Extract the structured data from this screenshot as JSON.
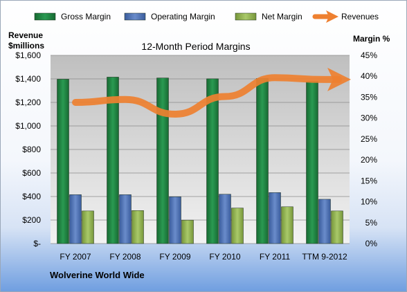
{
  "chart_data": {
    "type": "bar",
    "title": "12-Month Period Margins",
    "company": "Wolverine World Wide",
    "y_left_label_line1": "Revenue",
    "y_left_label_line2": "$millions",
    "y_right_label": "Margin %",
    "categories": [
      "FY 2007",
      "FY 2008",
      "FY 2009",
      "FY 2010",
      "FY 2011",
      "TTM 9-2012"
    ],
    "left_axis": {
      "min": 0,
      "max": 1600,
      "step": 200,
      "tick_labels": [
        "$-",
        "$200",
        "$400",
        "$600",
        "$800",
        "$1,000",
        "$1,200",
        "$1,400",
        "$1,600"
      ]
    },
    "right_axis": {
      "min": 0,
      "max": 45,
      "step": 5,
      "tick_labels": [
        "0%",
        "5%",
        "10%",
        "15%",
        "20%",
        "25%",
        "30%",
        "35%",
        "40%",
        "45%"
      ]
    },
    "grid": true,
    "legend_position": "top",
    "series": [
      {
        "name": "Gross Margin",
        "axis": "right",
        "kind": "bar",
        "color": "#1e7a3c",
        "values": [
          39.3,
          39.8,
          39.6,
          39.4,
          39.5,
          38.8
        ]
      },
      {
        "name": "Operating Margin",
        "axis": "right",
        "kind": "bar",
        "color": "#4a6fb5",
        "values": [
          11.7,
          11.7,
          11.2,
          11.8,
          12.2,
          10.6
        ]
      },
      {
        "name": "Net Margin",
        "axis": "right",
        "kind": "bar",
        "color": "#8fb04a",
        "values": [
          7.8,
          7.9,
          5.6,
          8.5,
          8.8,
          7.8
        ]
      },
      {
        "name": "Revenues",
        "axis": "left",
        "kind": "line",
        "color": "#ee8030",
        "values": [
          1200,
          1225,
          1100,
          1250,
          1410,
          1395
        ]
      }
    ]
  }
}
